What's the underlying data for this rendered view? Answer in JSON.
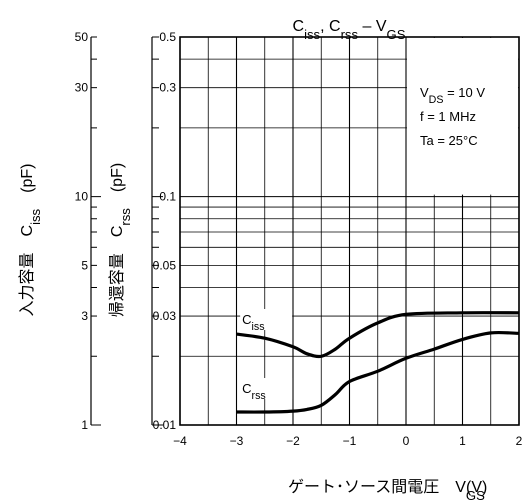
{
  "chart_data": {
    "type": "line",
    "title": {
      "main1": "C",
      "sub1": "iss",
      "main2": ", C",
      "sub2": "rss",
      "main3": " – V",
      "sub3": "GS"
    },
    "xlabel": {
      "main": "ゲート･ソース間電圧　V",
      "sub": "GS",
      "unit": "(V)"
    },
    "ylabel_ciss": {
      "main": "入力容量　C",
      "sub": "iss",
      "unit": "(pF)"
    },
    "ylabel_crss": {
      "main": "帰還容量　C",
      "sub": "rss",
      "unit": "(pF)"
    },
    "x_ticks": [
      "−4",
      "−3",
      "−2",
      "−1",
      "0",
      "1",
      "2"
    ],
    "xlim": [
      -4,
      2
    ],
    "ylim_crss": [
      0.01,
      0.5
    ],
    "ylim_ciss": [
      1,
      50
    ],
    "y_scale": "log",
    "crss_ticks": [
      "0.01",
      "0.03",
      "0.05",
      "0.1",
      "0.3",
      "0.5"
    ],
    "ciss_ticks": [
      "1",
      "3",
      "5",
      "10",
      "30",
      "50"
    ],
    "grid": true,
    "conditions": [
      {
        "main": "V",
        "sub": "DS",
        "rest": " = 10 V"
      },
      {
        "main": "f = 1 MHz",
        "sub": "",
        "rest": ""
      },
      {
        "main": "Ta = 25°C",
        "sub": "",
        "rest": ""
      }
    ],
    "series": [
      {
        "name": {
          "main": "C",
          "sub": "iss"
        },
        "axis": "left_pF",
        "x": [
          -3.0,
          -2.5,
          -2.0,
          -1.75,
          -1.5,
          -1.25,
          -1.0,
          -0.5,
          0.0,
          1.0,
          2.0
        ],
        "y": [
          2.5,
          2.4,
          2.2,
          2.05,
          2.0,
          2.15,
          2.4,
          2.8,
          3.05,
          3.1,
          3.1
        ]
      },
      {
        "name": {
          "main": "C",
          "sub": "rss"
        },
        "axis": "right_pF",
        "x": [
          -3.0,
          -2.5,
          -2.0,
          -1.75,
          -1.5,
          -1.25,
          -1.0,
          -0.5,
          0.0,
          0.5,
          1.0,
          1.5,
          2.0
        ],
        "y": [
          0.0114,
          0.0114,
          0.0115,
          0.0117,
          0.0122,
          0.0136,
          0.0155,
          0.0172,
          0.0196,
          0.0215,
          0.0237,
          0.0253,
          0.0252
        ]
      }
    ]
  }
}
